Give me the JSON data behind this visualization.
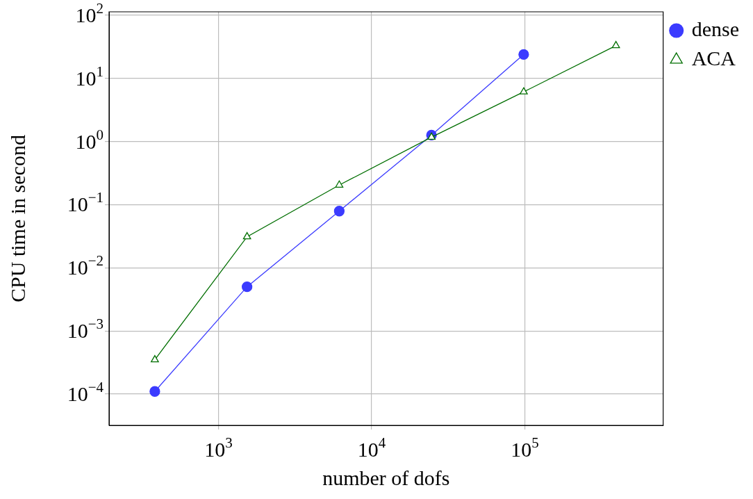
{
  "chart_data": {
    "type": "line",
    "xlabel": "number of dofs",
    "ylabel": "CPU time in second",
    "log": "xy",
    "grid": true,
    "legend": "right",
    "x": [
      384,
      1536,
      6144,
      24576,
      98304,
      393216
    ],
    "xlim": [
      193,
      800000
    ],
    "xticks": [
      {
        "value": 1000,
        "label": "10$^{3}$"
      },
      {
        "value": 10000,
        "label": "10$^{4}$"
      },
      {
        "value": 100000,
        "label": "10$^{5}$"
      }
    ],
    "ylim": [
      3.2e-05,
      113
    ],
    "yticks": [
      {
        "value": 0.0001,
        "label": "10$^{−4}$"
      },
      {
        "value": 0.001,
        "label": "10$^{−3}$"
      },
      {
        "value": 0.01,
        "label": "10$^{−2}$"
      },
      {
        "value": 0.1,
        "label": "10$^{−1}$"
      },
      {
        "value": 1,
        "label": "10$^{0}$"
      },
      {
        "value": 10,
        "label": "10$^{1}$"
      },
      {
        "value": 100,
        "label": "10$^{2}$"
      }
    ],
    "series": [
      {
        "name": "dense",
        "color": "#3b3bff",
        "marker": "circle",
        "values": [
          0.00011,
          0.005,
          0.079,
          1.26,
          23.9,
          null
        ]
      },
      {
        "name": "ACA",
        "color": "#006e00",
        "marker": "triangle",
        "values": [
          0.00035,
          0.031,
          0.204,
          1.17,
          6.1,
          33
        ]
      }
    ]
  }
}
